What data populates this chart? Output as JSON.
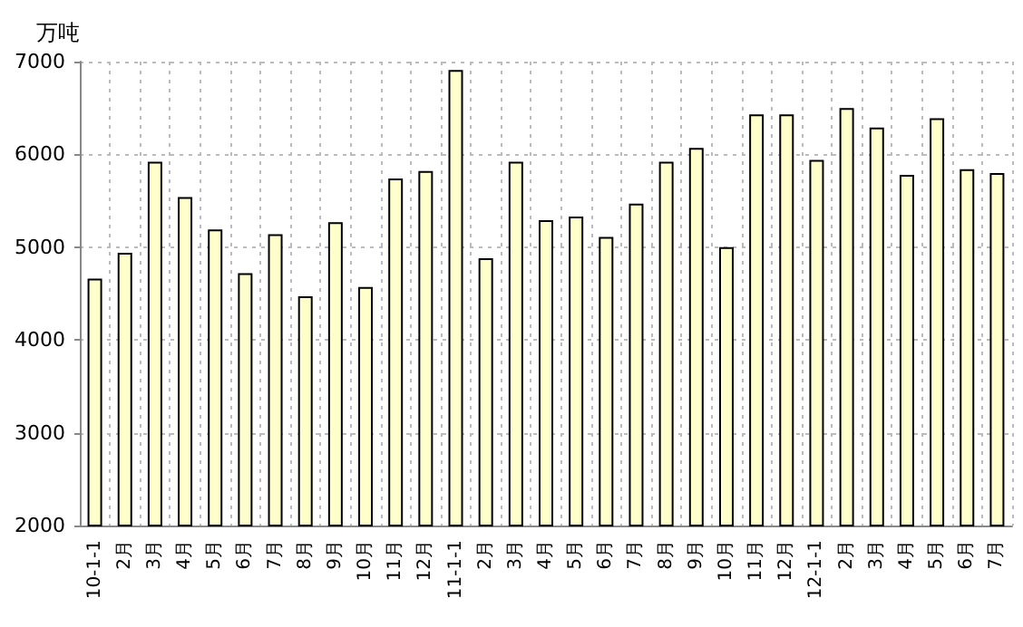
{
  "chart_data": {
    "type": "bar",
    "ylabel": "万吨",
    "categories": [
      "10-1-1",
      "2月",
      "3月",
      "4月",
      "5月",
      "6月",
      "7月",
      "8月",
      "9月",
      "10月",
      "11月",
      "12月",
      "11-1-1",
      "2月",
      "3月",
      "4月",
      "5月",
      "6月",
      "7月",
      "8月",
      "9月",
      "10月",
      "11月",
      "12月",
      "12-1-1",
      "2月",
      "3月",
      "4月",
      "5月",
      "6月",
      "7月"
    ],
    "values": [
      4660,
      4940,
      5920,
      5540,
      5190,
      4720,
      5140,
      4470,
      5270,
      4570,
      5740,
      5820,
      6910,
      4880,
      5920,
      5290,
      5330,
      5110,
      5470,
      5920,
      6070,
      5000,
      6430,
      6430,
      5940,
      6500,
      6290,
      5780,
      6390,
      5840,
      5800
    ],
    "color": "#ffffcc",
    "ylim": [
      2000,
      7000
    ],
    "yticks": [
      2000,
      3000,
      4000,
      5000,
      6000,
      7000
    ],
    "grid": true
  }
}
